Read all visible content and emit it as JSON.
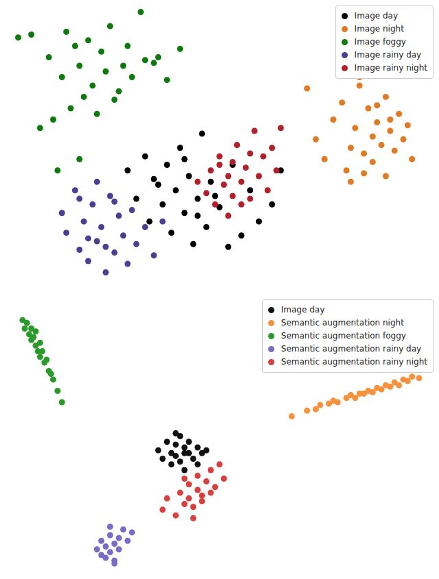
{
  "chart_data": [
    {
      "type": "scatter",
      "xlim": [
        0,
        100
      ],
      "ylim": [
        0,
        100
      ],
      "tick_labels": false,
      "legend": "upper right",
      "marker": "o",
      "series": [
        {
          "name": "Image day",
          "color": "#000000",
          "x": [
            29,
            31,
            33,
            34,
            36,
            37,
            38,
            39,
            40,
            41,
            42,
            43,
            44,
            45,
            46,
            47,
            48,
            50,
            52,
            53,
            55,
            57,
            59,
            62,
            64,
            35,
            42,
            45,
            49
          ],
          "y": [
            40,
            30,
            45,
            22,
            35,
            28,
            42,
            18,
            33,
            48,
            25,
            38,
            14,
            30,
            53,
            20,
            36,
            27,
            13,
            42,
            17,
            33,
            22,
            28,
            40,
            37,
            44,
            24,
            31
          ]
        },
        {
          "name": "Image night",
          "color": "#e07b24",
          "x": [
            70,
            72,
            74,
            76,
            78,
            79,
            80,
            81,
            82,
            83,
            84,
            85,
            85,
            86,
            87,
            88,
            88,
            89,
            90,
            91,
            92,
            93,
            94,
            80,
            83,
            86,
            89,
            82
          ],
          "y": [
            69,
            51,
            44,
            58,
            64,
            40,
            48,
            55,
            70,
            46,
            62,
            52,
            43,
            57,
            49,
            66,
            38,
            54,
            47,
            60,
            51,
            56,
            44,
            36,
            39,
            63,
            58,
            73
          ]
        },
        {
          "name": "Image foggy",
          "color": "#0e7a0e",
          "x": [
            4,
            7,
            11,
            14,
            15,
            17,
            18,
            20,
            21,
            23,
            24,
            25,
            27,
            29,
            30,
            32,
            33,
            36,
            38,
            41,
            16,
            19,
            22,
            26,
            12,
            9,
            28,
            35,
            13,
            18
          ],
          "y": [
            87,
            88,
            80,
            73,
            89,
            84,
            77,
            86,
            70,
            82,
            75,
            91,
            68,
            84,
            73,
            96,
            79,
            80,
            72,
            83,
            62,
            66,
            60,
            65,
            58,
            55,
            77,
            78,
            40,
            44
          ]
        },
        {
          "name": "Image rainy day",
          "color": "#4b3f94",
          "x": [
            14,
            15,
            17,
            18,
            19,
            20,
            21,
            22,
            23,
            24,
            25,
            26,
            27,
            28,
            29,
            30,
            31,
            33,
            35,
            37,
            20,
            24,
            22,
            26,
            18
          ],
          "y": [
            25,
            18,
            33,
            12,
            22,
            8,
            28,
            15,
            20,
            4,
            31,
            11,
            24,
            17,
            7,
            26,
            14,
            20,
            10,
            22,
            16,
            13,
            36,
            29,
            30
          ]
        },
        {
          "name": "Image rainy night",
          "color": "#b2202a",
          "x": [
            45,
            47,
            48,
            49,
            50,
            51,
            52,
            53,
            53,
            54,
            55,
            56,
            57,
            58,
            59,
            60,
            61,
            62,
            63,
            64,
            52,
            55,
            57,
            50
          ],
          "y": [
            36,
            32,
            40,
            28,
            45,
            35,
            38,
            43,
            31,
            49,
            36,
            41,
            30,
            54,
            38,
            45,
            33,
            48,
            40,
            55,
            24,
            28,
            46,
            42
          ]
        }
      ]
    },
    {
      "type": "scatter",
      "xlim": [
        0,
        100
      ],
      "ylim": [
        0,
        100
      ],
      "tick_labels": false,
      "legend": "upper right",
      "marker": "o",
      "series": [
        {
          "name": "Image day",
          "color": "#111111",
          "x": [
            36,
            37,
            38,
            39,
            39,
            40,
            40,
            41,
            41,
            42,
            42,
            43,
            43,
            44,
            45,
            45,
            46,
            47,
            40,
            42
          ],
          "y": [
            45,
            42,
            48,
            44,
            40,
            47,
            43,
            50,
            41,
            46,
            38,
            44,
            48,
            42,
            46,
            40,
            44,
            45,
            51,
            44
          ]
        },
        {
          "name": "Semantic augmentation night",
          "color": "#f5923e",
          "x": [
            66.5,
            70,
            72,
            73,
            75,
            76,
            77,
            79,
            80,
            81,
            83,
            84,
            85,
            86,
            87,
            88,
            89,
            90,
            91,
            92,
            93,
            94,
            95.6,
            82
          ],
          "y": [
            57,
            59,
            59.5,
            61,
            61.5,
            62.5,
            62,
            63.5,
            64.5,
            63.5,
            65,
            66,
            65.5,
            67,
            66.5,
            68,
            67.5,
            69,
            68,
            70,
            69.5,
            71,
            70.5,
            65
          ]
        },
        {
          "name": "Semantic augmentation foggy",
          "color": "#2a9a2a",
          "x": [
            5,
            5.5,
            6,
            6.5,
            7,
            7,
            7.5,
            8,
            8,
            8.5,
            9,
            9,
            9.5,
            10,
            10.5,
            11,
            11.5,
            12,
            13,
            14
          ],
          "y": [
            91,
            88,
            90,
            86,
            88,
            84,
            85,
            82,
            87,
            80,
            83,
            78,
            80,
            76,
            77,
            73,
            72,
            70,
            66,
            62
          ]
        },
        {
          "name": "Semantic augmentation rainy day",
          "color": "#7a6cc6",
          "x": [
            22,
            23,
            23,
            24,
            24,
            25,
            25,
            26,
            26,
            27,
            27,
            28,
            29,
            30,
            25,
            26
          ],
          "y": [
            10,
            8,
            13,
            11,
            7,
            15,
            9,
            12,
            6,
            14,
            10,
            17,
            13,
            16,
            18,
            5
          ]
        },
        {
          "name": "Semantic augmentation rainy night",
          "color": "#d93f3d",
          "x": [
            37,
            38,
            40,
            41,
            42,
            43,
            43,
            44,
            45,
            45,
            46,
            47,
            48,
            49,
            50,
            51,
            44,
            42,
            46,
            48
          ],
          "y": [
            24,
            28,
            22,
            30,
            26,
            33,
            28,
            25,
            31,
            36,
            29,
            34,
            38,
            32,
            40,
            35,
            21,
            35,
            27,
            30
          ]
        }
      ]
    }
  ]
}
